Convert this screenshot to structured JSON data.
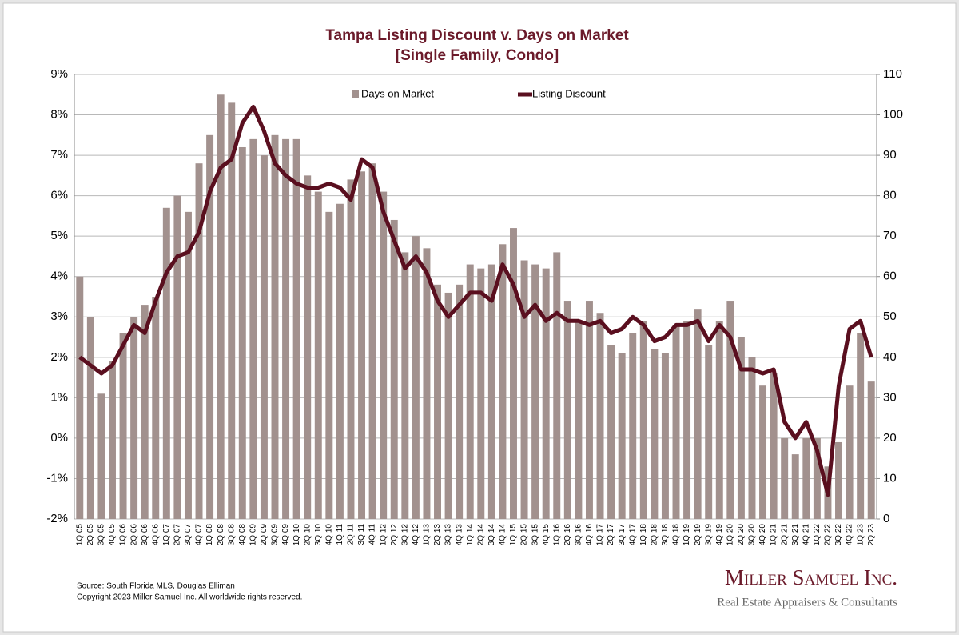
{
  "chart_data": {
    "type": "combo",
    "title": [
      "Tampa Listing Discount v. Days on Market",
      "[Single Family, Condo]"
    ],
    "categories": [
      "1Q 05",
      "2Q 05",
      "3Q 05",
      "4Q 05",
      "1Q 06",
      "2Q 06",
      "3Q 06",
      "4Q 06",
      "1Q 07",
      "2Q 07",
      "3Q 07",
      "4Q 07",
      "1Q 08",
      "2Q 08",
      "3Q 08",
      "4Q 08",
      "1Q 09",
      "2Q 09",
      "3Q 09",
      "4Q 09",
      "1Q 10",
      "2Q 10",
      "3Q 10",
      "4Q 10",
      "1Q 11",
      "2Q 11",
      "3Q 11",
      "4Q 11",
      "1Q 12",
      "2Q 12",
      "3Q 12",
      "4Q 12",
      "1Q 13",
      "2Q 13",
      "3Q 13",
      "4Q 13",
      "1Q 14",
      "2Q 14",
      "3Q 14",
      "4Q 14",
      "1Q 15",
      "2Q 15",
      "3Q 15",
      "4Q 15",
      "1Q 16",
      "2Q 16",
      "3Q 16",
      "4Q 16",
      "1Q 17",
      "2Q 17",
      "3Q 17",
      "4Q 17",
      "1Q 18",
      "2Q 18",
      "3Q 18",
      "4Q 18",
      "1Q 19",
      "2Q 19",
      "3Q 19",
      "4Q 19",
      "1Q 20",
      "2Q 20",
      "3Q 20",
      "4Q 20",
      "1Q 21",
      "2Q 21",
      "3Q 21",
      "4Q 21",
      "1Q 22",
      "2Q 22",
      "3Q 22",
      "4Q 22",
      "1Q 23",
      "2Q 23"
    ],
    "series": [
      {
        "name": "Days on Market",
        "type": "bar",
        "axis": "y2",
        "color": "#a2918e",
        "values": [
          60,
          50,
          31,
          39,
          46,
          50,
          53,
          55,
          77,
          80,
          76,
          88,
          95,
          105,
          103,
          92,
          94,
          90,
          95,
          94,
          94,
          85,
          81,
          76,
          78,
          84,
          86,
          88,
          81,
          74,
          66,
          70,
          67,
          58,
          56,
          58,
          63,
          62,
          63,
          68,
          72,
          64,
          63,
          62,
          66,
          54,
          49,
          54,
          51,
          43,
          41,
          46,
          49,
          42,
          41,
          48,
          49,
          52,
          43,
          49,
          54,
          45,
          40,
          33,
          36,
          20,
          16,
          20,
          20,
          13,
          19,
          33,
          46,
          34
        ]
      },
      {
        "name": "Listing Discount",
        "type": "line",
        "color": "#5a0f1f",
        "values": [
          2.0,
          1.8,
          1.6,
          1.8,
          2.3,
          2.8,
          2.6,
          3.4,
          4.1,
          4.5,
          4.6,
          5.1,
          6.1,
          6.7,
          6.9,
          7.8,
          8.2,
          7.6,
          6.8,
          6.5,
          6.3,
          6.2,
          6.2,
          6.3,
          6.2,
          5.9,
          6.9,
          6.7,
          5.6,
          4.9,
          4.2,
          4.5,
          4.1,
          3.4,
          3.0,
          3.3,
          3.6,
          3.6,
          3.4,
          4.3,
          3.8,
          3.0,
          3.3,
          2.9,
          3.1,
          2.9,
          2.9,
          2.8,
          2.9,
          2.6,
          2.7,
          3.0,
          2.8,
          2.4,
          2.5,
          2.8,
          2.8,
          2.9,
          2.4,
          2.8,
          2.5,
          1.7,
          1.7,
          1.6,
          1.7,
          0.4,
          0.0,
          0.4,
          -0.3,
          -1.4,
          1.3,
          2.7,
          2.9,
          2.0
        ]
      }
    ],
    "ylim": [
      -2,
      9
    ],
    "yticks": [
      {
        "value": -2,
        "label": "-2%"
      },
      {
        "value": -1,
        "label": "-1%"
      },
      {
        "value": 0,
        "label": "0%"
      },
      {
        "value": 1,
        "label": "1%"
      },
      {
        "value": 2,
        "label": "2%"
      },
      {
        "value": 3,
        "label": "3%"
      },
      {
        "value": 4,
        "label": "4%"
      },
      {
        "value": 5,
        "label": "5%"
      },
      {
        "value": 6,
        "label": "6%"
      },
      {
        "value": 7,
        "label": "7%"
      },
      {
        "value": 8,
        "label": "8%"
      },
      {
        "value": 9,
        "label": "9%"
      }
    ],
    "y2lim": [
      0,
      110
    ],
    "y2ticks": [
      0,
      10,
      20,
      30,
      40,
      50,
      60,
      70,
      80,
      90,
      100,
      110
    ],
    "grid": true,
    "legend": "top",
    "source": [
      "Source: South Florida MLS, Douglas Elliman",
      "Copyright 2023 Miller Samuel Inc.  All worldwide rights reserved."
    ],
    "logo": [
      "Miller Samuel Inc.",
      "Real Estate Appraisers & Consultants"
    ]
  }
}
